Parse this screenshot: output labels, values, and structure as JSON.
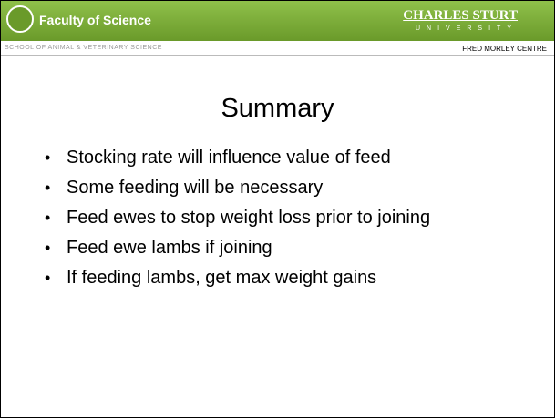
{
  "header": {
    "faculty": "Faculty of Science",
    "university": "CHARLES STURT",
    "university_sub": "UNIVERSITY",
    "school": "SCHOOL OF ANIMAL & VETERINARY SCIENCE",
    "centre": "FRED MORLEY CENTRE"
  },
  "slide": {
    "title": "Summary",
    "bullets": [
      "Stocking rate will influence value of feed",
      "Some feeding will be necessary",
      "Feed ewes to stop weight loss prior to joining",
      "Feed ewe lambs if joining",
      "If feeding lambs, get max weight gains"
    ]
  }
}
